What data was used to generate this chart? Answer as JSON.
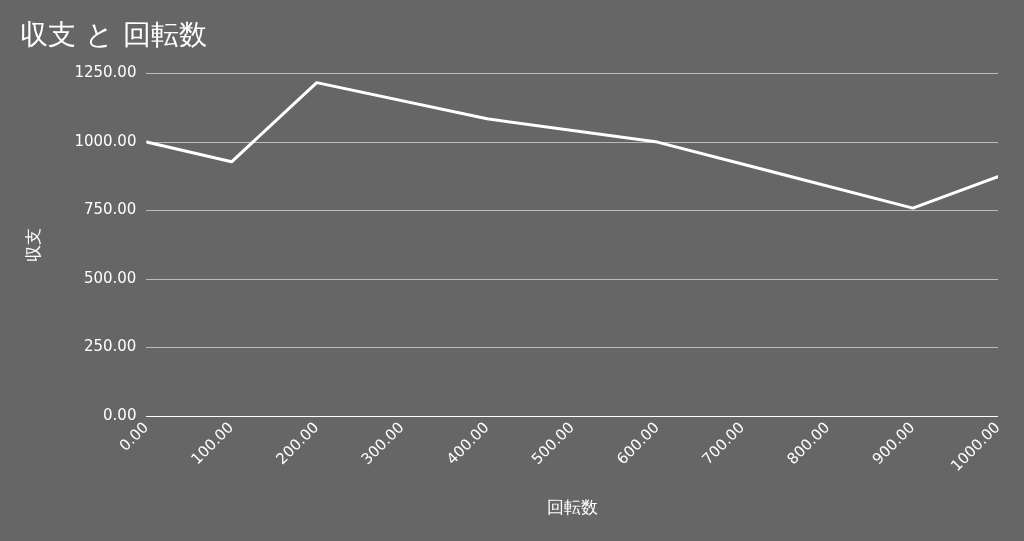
{
  "chart_data": {
    "type": "line",
    "title": "収支 と 回転数",
    "xlabel": "回転数",
    "ylabel": "収支",
    "x": [
      0,
      100,
      200,
      400,
      600,
      900,
      1000
    ],
    "series": [
      {
        "color": "#ffffff",
        "values": [
          1000,
          928,
          1217,
          1085,
          1000,
          759,
          874
        ]
      }
    ],
    "xlim": [
      0,
      1000
    ],
    "xticks": [
      {
        "value": 0,
        "label": "0.00"
      },
      {
        "value": 100,
        "label": "100.00"
      },
      {
        "value": 200,
        "label": "200.00"
      },
      {
        "value": 300,
        "label": "300.00"
      },
      {
        "value": 400,
        "label": "400.00"
      },
      {
        "value": 500,
        "label": "500.00"
      },
      {
        "value": 600,
        "label": "600.00"
      },
      {
        "value": 700,
        "label": "700.00"
      },
      {
        "value": 800,
        "label": "800.00"
      },
      {
        "value": 900,
        "label": "900.00"
      },
      {
        "value": 1000,
        "label": "1000.00"
      }
    ],
    "ylim": [
      0,
      1250
    ],
    "yticks": [
      {
        "value": 0,
        "label": "0.00"
      },
      {
        "value": 250,
        "label": "250.00"
      },
      {
        "value": 500,
        "label": "500.00"
      },
      {
        "value": 750,
        "label": "750.00"
      },
      {
        "value": 1000,
        "label": "1000.00"
      },
      {
        "value": 1250,
        "label": "1250.00"
      }
    ],
    "grid": "y",
    "legend": false,
    "marker": "none",
    "line_style": "solid"
  }
}
